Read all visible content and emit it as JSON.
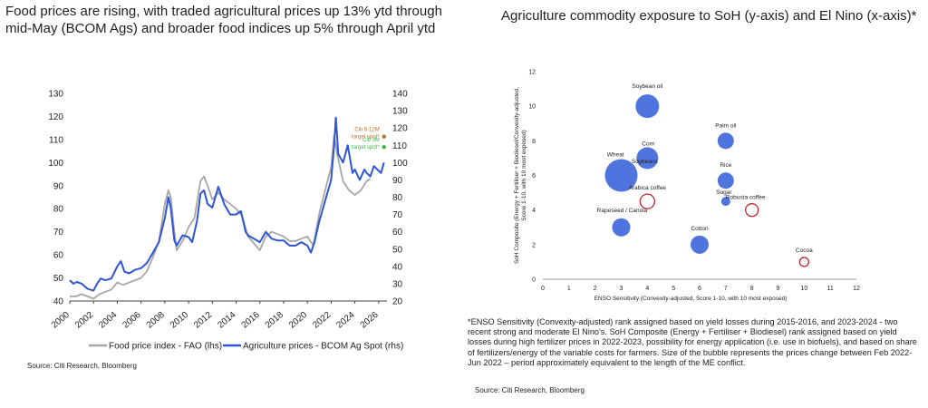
{
  "left": {
    "title": "Food prices are rising, with traded agricultural prices up 13% ytd through mid-May (BCOM Ags) and broader food indices up 5% through April ytd",
    "source": "Source: Citi Research, Bloomberg",
    "annotations": {
      "target_6_12m": "Citi 6-12M target spot*",
      "target_3m": "Citi 3M target spot*",
      "color_6_12m": "#b3742a",
      "color_3m": "#3fb24a"
    }
  },
  "right": {
    "title": "Agriculture commodity exposure to SoH (y-axis) and El Nino (x-axis)*",
    "note": "*ENSO Sensitivity (Convexity-adjusted) rank assigned based on yield losses during 2015-2016, and 2023-2024 - two recent strong and moderate El Nino's. SoH Composite (Energy + Fertiliser + Biodiesel) rank assigned based on yield losses during high fertilizer prices in 2022-2023, possibility for energy application (i.e. use in biofuels), and based on share of fertilizers/energy of the variable costs for farmers. Size of the bubble represents the prices change between Feb 2022-Jun 2022 – period approximately equivalent to the length of the ME conflict.",
    "source": "Source: Citi Research, Bloomberg"
  },
  "chart_data": [
    {
      "type": "line",
      "x_ticks": [
        "2000",
        "2002",
        "2004",
        "2006",
        "2008",
        "2010",
        "2012",
        "2014",
        "2016",
        "2018",
        "2020",
        "2022",
        "2024",
        "2026"
      ],
      "xlim": [
        2000,
        2026.7
      ],
      "ylim_left": [
        40,
        130
      ],
      "ylim_right": [
        20,
        140
      ],
      "y_ticks_left": [
        "40",
        "50",
        "60",
        "70",
        "80",
        "90",
        "100",
        "110",
        "120",
        "130"
      ],
      "y_ticks_right": [
        "20",
        "30",
        "40",
        "50",
        "60",
        "70",
        "80",
        "90",
        "100",
        "110",
        "120",
        "130",
        "140"
      ],
      "series": [
        {
          "name": "Food price index - FAO (lhs)",
          "axis": "left",
          "color": "#a6a6a6",
          "points": [
            [
              2000,
              42
            ],
            [
              2000.5,
              42
            ],
            [
              2001,
              43
            ],
            [
              2001.5,
              42
            ],
            [
              2002,
              41
            ],
            [
              2002.5,
              43
            ],
            [
              2003,
              44
            ],
            [
              2003.5,
              45
            ],
            [
              2004,
              48
            ],
            [
              2004.5,
              47
            ],
            [
              2005,
              48
            ],
            [
              2005.5,
              49
            ],
            [
              2006,
              50
            ],
            [
              2006.5,
              53
            ],
            [
              2007,
              59
            ],
            [
              2007.5,
              66
            ],
            [
              2008,
              82
            ],
            [
              2008.3,
              88
            ],
            [
              2008.5,
              85
            ],
            [
              2008.8,
              70
            ],
            [
              2009,
              62
            ],
            [
              2009.5,
              66
            ],
            [
              2010,
              72
            ],
            [
              2010.5,
              76
            ],
            [
              2011,
              92
            ],
            [
              2011.3,
              94
            ],
            [
              2011.6,
              90
            ],
            [
              2012,
              84
            ],
            [
              2012.5,
              87
            ],
            [
              2013,
              84
            ],
            [
              2013.5,
              82
            ],
            [
              2014,
              80
            ],
            [
              2014.5,
              77
            ],
            [
              2015,
              68
            ],
            [
              2015.5,
              65
            ],
            [
              2016,
              62
            ],
            [
              2016.5,
              68
            ],
            [
              2017,
              70
            ],
            [
              2017.5,
              69
            ],
            [
              2018,
              68
            ],
            [
              2018.5,
              66
            ],
            [
              2019,
              66
            ],
            [
              2019.5,
              67
            ],
            [
              2020,
              68
            ],
            [
              2020.5,
              64
            ],
            [
              2021,
              78
            ],
            [
              2021.5,
              88
            ],
            [
              2022,
              98
            ],
            [
              2022.25,
              112
            ],
            [
              2022.5,
              104
            ],
            [
              2023,
              92
            ],
            [
              2023.5,
              88
            ],
            [
              2024,
              86
            ],
            [
              2024.5,
              88
            ],
            [
              2025,
              92
            ],
            [
              2025.3,
              93
            ]
          ]
        },
        {
          "name": "Agriculture prices - BCOM Ag Spot (rhs)",
          "axis": "right",
          "color": "#2f55d4",
          "points": [
            [
              2000,
              32
            ],
            [
              2000.3,
              30
            ],
            [
              2000.6,
              31
            ],
            [
              2001,
              30
            ],
            [
              2001.5,
              27
            ],
            [
              2002,
              26
            ],
            [
              2002.3,
              30
            ],
            [
              2002.6,
              33
            ],
            [
              2003,
              32
            ],
            [
              2003.5,
              33
            ],
            [
              2004,
              40
            ],
            [
              2004.3,
              43
            ],
            [
              2004.6,
              37
            ],
            [
              2005,
              36
            ],
            [
              2005.5,
              38
            ],
            [
              2006,
              39
            ],
            [
              2006.5,
              42
            ],
            [
              2007,
              48
            ],
            [
              2007.5,
              54
            ],
            [
              2008,
              68
            ],
            [
              2008.3,
              80
            ],
            [
              2008.5,
              74
            ],
            [
              2008.8,
              55
            ],
            [
              2009,
              52
            ],
            [
              2009.5,
              58
            ],
            [
              2010,
              57
            ],
            [
              2010.3,
              54
            ],
            [
              2010.7,
              66
            ],
            [
              2011,
              82
            ],
            [
              2011.3,
              84
            ],
            [
              2011.6,
              76
            ],
            [
              2012,
              74
            ],
            [
              2012.5,
              86
            ],
            [
              2012.8,
              80
            ],
            [
              2013,
              76
            ],
            [
              2013.5,
              70
            ],
            [
              2014,
              70
            ],
            [
              2014.4,
              72
            ],
            [
              2014.8,
              60
            ],
            [
              2015,
              58
            ],
            [
              2015.5,
              56
            ],
            [
              2016,
              54
            ],
            [
              2016.5,
              60
            ],
            [
              2017,
              56
            ],
            [
              2017.5,
              55
            ],
            [
              2018,
              55
            ],
            [
              2018.5,
              52
            ],
            [
              2019,
              52
            ],
            [
              2019.5,
              54
            ],
            [
              2020,
              52
            ],
            [
              2020.3,
              48
            ],
            [
              2020.6,
              54
            ],
            [
              2021,
              66
            ],
            [
              2021.5,
              78
            ],
            [
              2022,
              90
            ],
            [
              2022.25,
              110
            ],
            [
              2022.4,
              126
            ],
            [
              2022.6,
              105
            ],
            [
              2023,
              100
            ],
            [
              2023.4,
              110
            ],
            [
              2023.8,
              94
            ],
            [
              2024,
              96
            ],
            [
              2024.4,
              90
            ],
            [
              2024.8,
              96
            ],
            [
              2025,
              94
            ],
            [
              2025.3,
              92
            ],
            [
              2025.6,
              98
            ],
            [
              2025.9,
              96
            ],
            [
              2026.2,
              94
            ],
            [
              2026.45,
              100
            ]
          ]
        }
      ],
      "markers": [
        {
          "label": "Citi 6-12M target spot*",
          "x": 2026.45,
          "value": 115,
          "axis": "right"
        },
        {
          "label": "Citi 3M target spot*",
          "x": 2026.45,
          "value": 109,
          "axis": "right"
        }
      ],
      "legend": "bottom"
    },
    {
      "type": "scatter",
      "xlabel": "ENSO Sensitivity (Convexity-adjusted, Score 1-10, with 10 most exposed)",
      "ylabel": "SoH Composite (Energy + Fertiliser + Biodiesel/Convexity-adjusted, Score 1-10, with 10 most exposed)",
      "xlim": [
        0,
        12
      ],
      "ylim": [
        0,
        12
      ],
      "x_ticks": [
        "0",
        "1",
        "2",
        "3",
        "4",
        "5",
        "6",
        "7",
        "8",
        "9",
        "10",
        "11",
        "12"
      ],
      "y_ticks": [
        "0",
        "2",
        "4",
        "6",
        "8",
        "10",
        "12"
      ],
      "points": [
        {
          "label": "Soybean oil",
          "x": 4,
          "y": 10,
          "size": 13,
          "filled": true
        },
        {
          "label": "Palm oil",
          "x": 7,
          "y": 8,
          "size": 9,
          "filled": true
        },
        {
          "label": "Corn",
          "x": 4,
          "y": 7,
          "size": 12,
          "filled": true
        },
        {
          "label": "Soybeans",
          "x": 4,
          "y": 6.8,
          "size": 6,
          "filled": true
        },
        {
          "label": "Wheat",
          "x": 3,
          "y": 6,
          "size": 18,
          "filled": true
        },
        {
          "label": "Rice",
          "x": 7,
          "y": 5.7,
          "size": 9,
          "filled": true
        },
        {
          "label": "Sugar",
          "x": 7,
          "y": 4.5,
          "size": 5,
          "filled": true
        },
        {
          "label": "Arabica coffee",
          "x": 4,
          "y": 4.5,
          "size": 8,
          "filled": false
        },
        {
          "label": "Robusta coffee",
          "x": 8,
          "y": 4,
          "size": 7,
          "filled": false
        },
        {
          "label": "Rapeseed / Canola",
          "x": 3,
          "y": 3,
          "size": 10,
          "filled": true
        },
        {
          "label": "Cotton",
          "x": 6,
          "y": 2,
          "size": 10,
          "filled": true
        },
        {
          "label": "Cocoa",
          "x": 10,
          "y": 1,
          "size": 5,
          "filled": false
        }
      ],
      "bubble_fill": "#4f74dd",
      "bubble_outline": "#c0282f"
    }
  ]
}
